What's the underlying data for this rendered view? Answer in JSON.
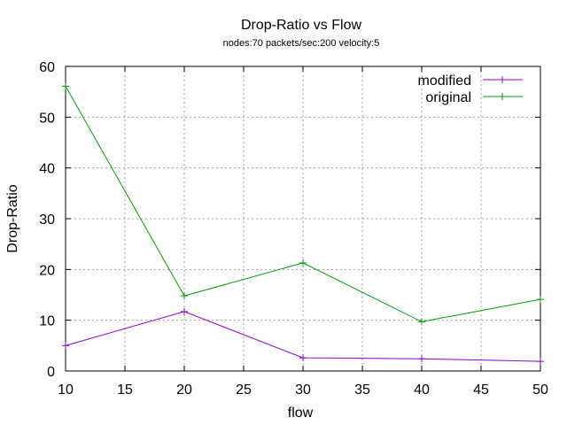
{
  "chart_data": {
    "type": "line",
    "title": "Drop-Ratio vs Flow",
    "subtitle": "nodes:70  packets/sec:200  velocity:5",
    "xlabel": "flow",
    "ylabel": "Drop-Ratio",
    "xlim": [
      10,
      50
    ],
    "ylim": [
      0,
      60
    ],
    "xticks": [
      10,
      15,
      20,
      25,
      30,
      35,
      40,
      45,
      50
    ],
    "yticks": [
      0,
      10,
      20,
      30,
      40,
      50,
      60
    ],
    "grid": true,
    "legend_position": "top-right",
    "x": [
      10,
      20,
      30,
      40,
      50
    ],
    "series": [
      {
        "name": "modified",
        "color": "#9400d3",
        "values": [
          5.0,
          11.7,
          2.6,
          2.4,
          1.9
        ]
      },
      {
        "name": "original",
        "color": "#009e00",
        "values": [
          56.1,
          14.8,
          21.3,
          9.7,
          14.1
        ]
      }
    ]
  }
}
